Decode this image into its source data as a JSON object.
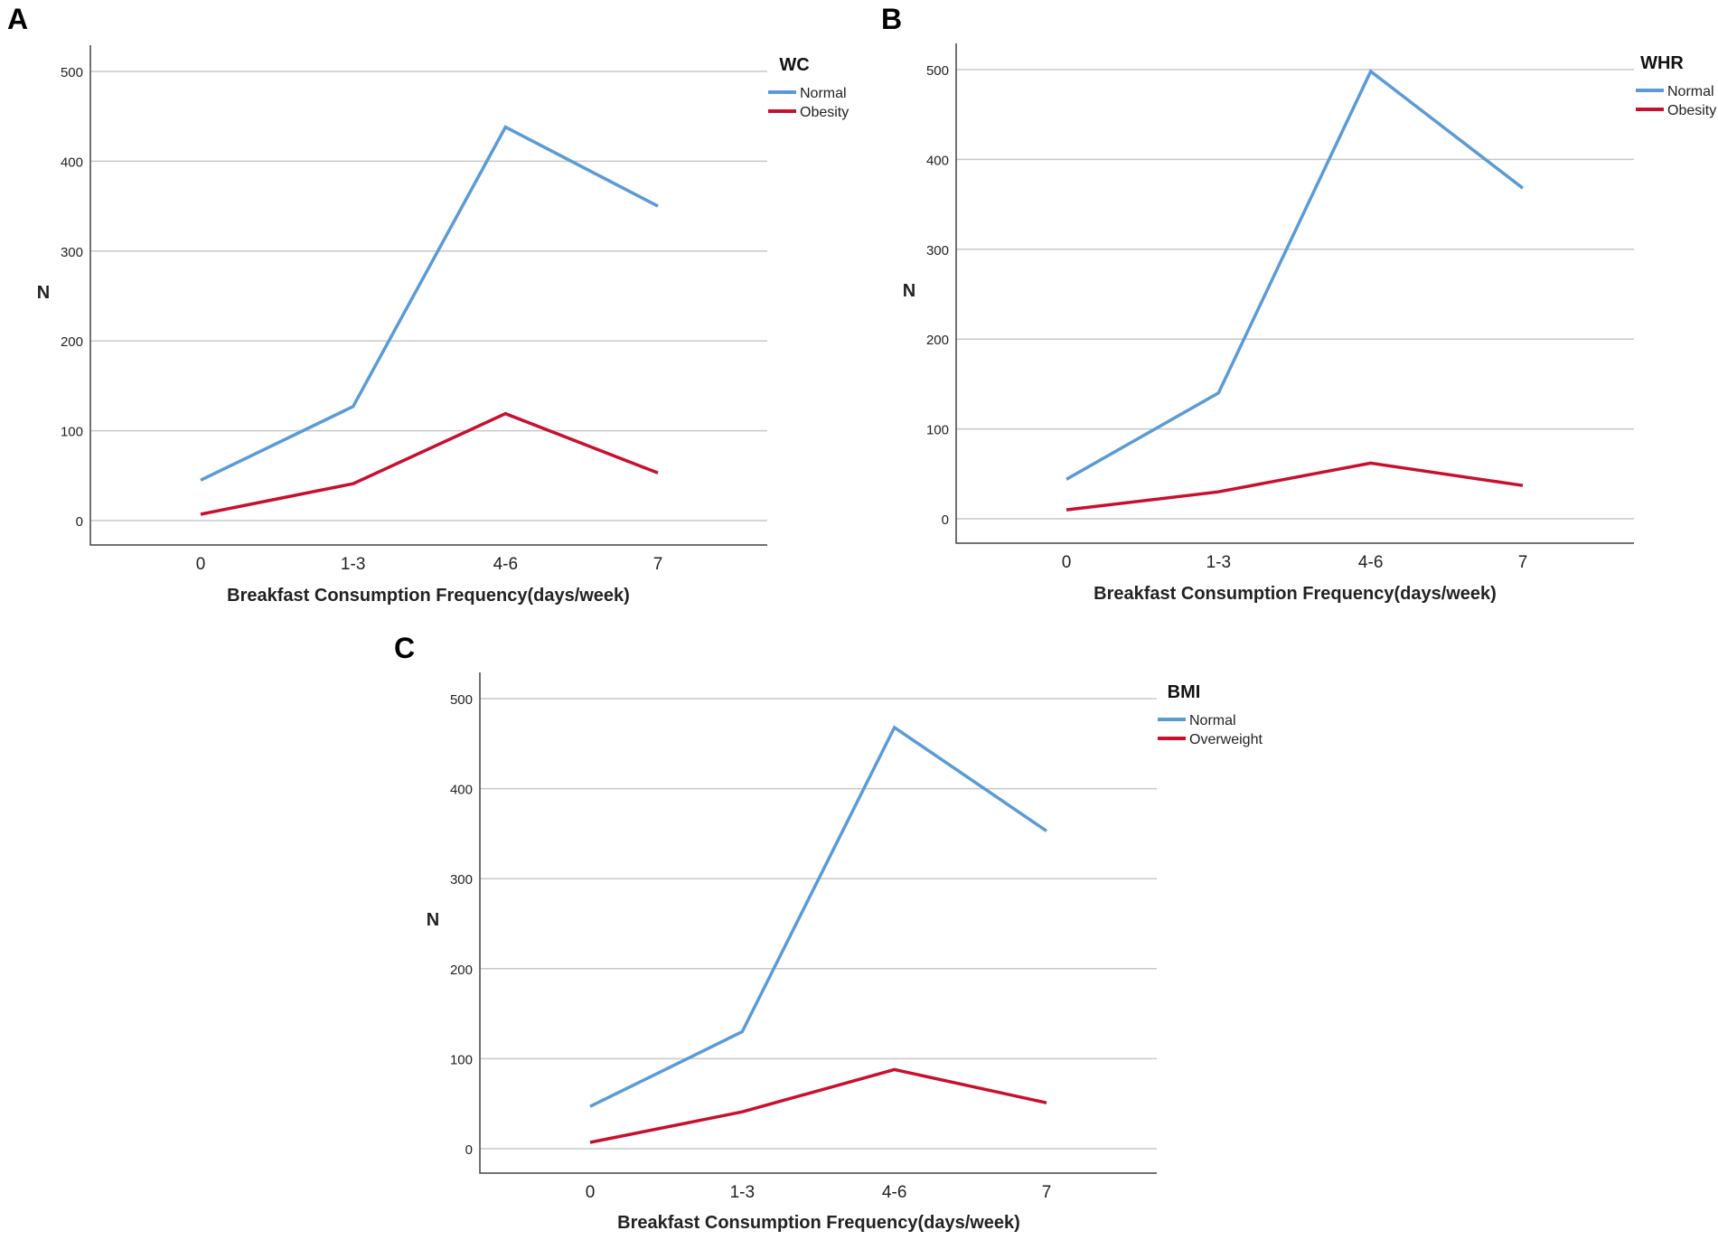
{
  "chart_data": [
    {
      "type": "line",
      "panel": "A",
      "categories": [
        "0",
        "1-3",
        "4-6",
        "7"
      ],
      "series": [
        {
          "name": "Normal",
          "values": [
            45,
            127,
            438,
            350
          ],
          "color": "#5b9bd5"
        },
        {
          "name": "Obesity",
          "values": [
            7,
            41,
            119,
            53
          ],
          "color": "#c8102e"
        }
      ],
      "legend_title": "WC",
      "xlabel": "Breakfast Consumption Frequency(days/week)",
      "ylabel": "N",
      "ylim": [
        -25,
        530
      ],
      "yticks": [
        0,
        100,
        200,
        300,
        400,
        500
      ],
      "grid": true,
      "legend_position": "top-right"
    },
    {
      "type": "line",
      "panel": "B",
      "categories": [
        "0",
        "1-3",
        "4-6",
        "7"
      ],
      "series": [
        {
          "name": "Normal",
          "values": [
            44,
            140,
            498,
            368
          ],
          "color": "#5b9bd5"
        },
        {
          "name": "Obesity",
          "values": [
            10,
            30,
            62,
            37
          ],
          "color": "#c8102e"
        }
      ],
      "legend_title": "WHR",
      "xlabel": "Breakfast Consumption Frequency(days/week)",
      "ylabel": "N",
      "ylim": [
        -25,
        530
      ],
      "yticks": [
        0,
        100,
        200,
        300,
        400,
        500
      ],
      "grid": true,
      "legend_position": "top-right"
    },
    {
      "type": "line",
      "panel": "C",
      "categories": [
        "0",
        "1-3",
        "4-6",
        "7"
      ],
      "series": [
        {
          "name": "Normal",
          "values": [
            47,
            130,
            468,
            353
          ],
          "color": "#5b9bd5"
        },
        {
          "name": "Overweight",
          "values": [
            7,
            41,
            88,
            51
          ],
          "color": "#c8102e"
        }
      ],
      "legend_title": "BMI",
      "xlabel": "Breakfast Consumption Frequency(days/week)",
      "ylabel": "N",
      "ylim": [
        -25,
        530
      ],
      "yticks": [
        0,
        100,
        200,
        300,
        400,
        500
      ],
      "grid": true,
      "legend_position": "top-right"
    }
  ]
}
